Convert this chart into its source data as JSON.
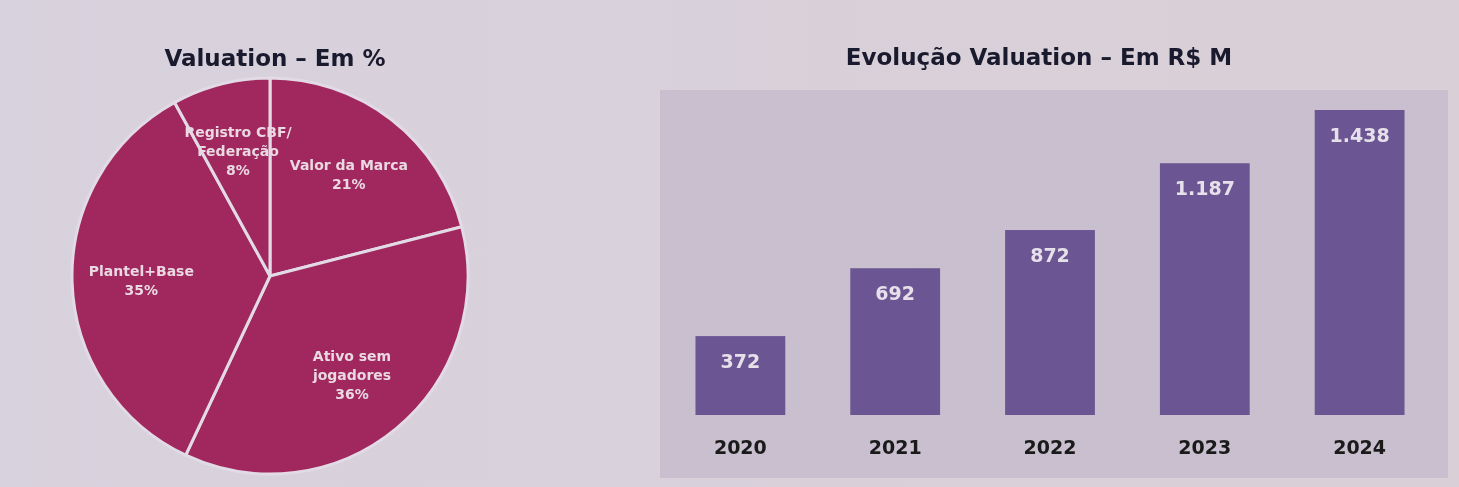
{
  "chart_data": [
    {
      "type": "pie",
      "title": "Valuation – Em %",
      "categories": [
        "Valor da Marca",
        "Ativo sem jogadores",
        "Plantel+Base",
        "Registro CBF/Federação"
      ],
      "values": [
        21,
        36,
        35,
        8
      ],
      "value_labels": [
        "21%",
        "36%",
        "35%",
        "8%"
      ],
      "colors": [
        "#a0285e",
        "#a0285e",
        "#a0285e",
        "#a0285e"
      ]
    },
    {
      "type": "bar",
      "title": "Evolução Valuation – Em R$ M",
      "categories": [
        "2020",
        "2021",
        "2022",
        "2023",
        "2024"
      ],
      "values": [
        372,
        692,
        872,
        1187,
        1438
      ],
      "value_labels": [
        "372",
        "692",
        "872",
        "1.187",
        "1.438"
      ],
      "color": "#6b5592",
      "tick_labels": "x"
    }
  ]
}
